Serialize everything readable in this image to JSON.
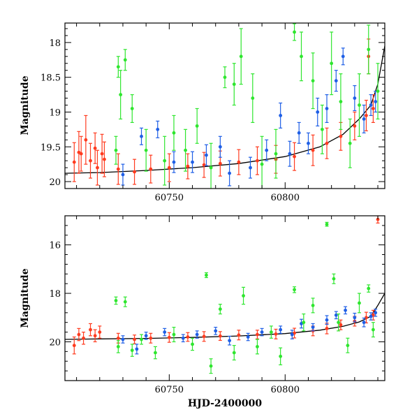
{
  "chart_data": [
    {
      "type": "scatter",
      "panel": "top",
      "title": "",
      "xlabel": "",
      "ylabel": "Magnitude",
      "xlim": [
        60705,
        60843
      ],
      "ylim": [
        20.1,
        17.72
      ],
      "y_inverted": true,
      "xticks": [
        60750,
        60800
      ],
      "xtick_labels": [
        "60750",
        "60800"
      ],
      "yticks": [
        18,
        18.5,
        19,
        19.5,
        20
      ],
      "ytick_labels": [
        "18",
        "18.5",
        "19",
        "19.5",
        "20"
      ],
      "grid": false,
      "legend": "none",
      "series": [
        {
          "color": "#ff3b1f",
          "points": [
            [
              60709,
              19.72,
              0.28
            ],
            [
              60711,
              19.58,
              0.3
            ],
            [
              60712,
              19.6,
              0.25
            ],
            [
              60714,
              19.4,
              0.35
            ],
            [
              60716,
              19.7,
              0.25
            ],
            [
              60718,
              19.52,
              0.22
            ],
            [
              60719,
              19.8,
              0.25
            ],
            [
              60721,
              19.6,
              0.28
            ],
            [
              60722,
              19.68,
              0.25
            ],
            [
              60728,
              19.82,
              0.22
            ],
            [
              60735,
              19.86,
              0.18
            ],
            [
              60742,
              19.82,
              0.2
            ],
            [
              60750,
              19.8,
              0.2
            ],
            [
              60758,
              19.78,
              0.18
            ],
            [
              60765,
              19.76,
              0.18
            ],
            [
              60772,
              19.74,
              0.18
            ],
            [
              60780,
              19.72,
              0.18
            ],
            [
              60788,
              19.7,
              0.2
            ],
            [
              60796,
              19.68,
              0.2
            ],
            [
              60804,
              19.64,
              0.2
            ],
            [
              60812,
              19.55,
              0.22
            ],
            [
              60818,
              19.45,
              0.22
            ],
            [
              60824,
              19.35,
              0.2
            ],
            [
              60830,
              19.2,
              0.2
            ],
            [
              60835,
              19.05,
              0.22
            ],
            [
              60838,
              18.95,
              0.2
            ],
            [
              60836,
              18.2,
              0.25
            ]
          ]
        },
        {
          "color": "#1f5fe6",
          "points": [
            [
              60730,
              19.9,
              0.15
            ],
            [
              60738,
              19.35,
              0.12
            ],
            [
              60745,
              19.25,
              0.12
            ],
            [
              60752,
              19.72,
              0.15
            ],
            [
              60760,
              19.72,
              0.15
            ],
            [
              60766,
              19.62,
              0.15
            ],
            [
              60772,
              19.5,
              0.15
            ],
            [
              60776,
              19.88,
              0.18
            ],
            [
              60785,
              19.8,
              0.15
            ],
            [
              60792,
              19.55,
              0.15
            ],
            [
              60798,
              19.05,
              0.18
            ],
            [
              60802,
              19.6,
              0.18
            ],
            [
              60806,
              19.3,
              0.15
            ],
            [
              60810,
              19.45,
              0.15
            ],
            [
              60814,
              19.0,
              0.2
            ],
            [
              60818,
              18.95,
              0.2
            ],
            [
              60822,
              18.55,
              0.15
            ],
            [
              60825,
              18.2,
              0.12
            ],
            [
              60830,
              18.8,
              0.18
            ],
            [
              60834,
              19.1,
              0.2
            ],
            [
              60837,
              18.9,
              0.15
            ],
            [
              60839,
              18.85,
              0.15
            ]
          ]
        },
        {
          "color": "#2ee62e",
          "points": [
            [
              60727,
              19.55,
              0.2
            ],
            [
              60728,
              18.35,
              0.15
            ],
            [
              60729,
              18.75,
              0.35
            ],
            [
              60731,
              18.25,
              0.15
            ],
            [
              60734,
              18.95,
              0.2
            ],
            [
              60740,
              19.55,
              0.3
            ],
            [
              60748,
              19.7,
              0.35
            ],
            [
              60752,
              19.3,
              0.25
            ],
            [
              60757,
              19.55,
              0.3
            ],
            [
              60762,
              19.2,
              0.25
            ],
            [
              60768,
              19.8,
              0.35
            ],
            [
              60774,
              18.5,
              0.15
            ],
            [
              60778,
              18.6,
              0.3
            ],
            [
              60781,
              18.2,
              0.4
            ],
            [
              60786,
              18.8,
              0.35
            ],
            [
              60790,
              19.75,
              0.4
            ],
            [
              60796,
              19.6,
              0.35
            ],
            [
              60804,
              17.85,
              0.12
            ],
            [
              60807,
              18.2,
              0.35
            ],
            [
              60812,
              18.55,
              0.4
            ],
            [
              60816,
              19.25,
              0.35
            ],
            [
              60820,
              18.3,
              0.45
            ],
            [
              60824,
              18.85,
              0.4
            ],
            [
              60828,
              19.45,
              0.35
            ],
            [
              60832,
              18.9,
              0.45
            ],
            [
              60836,
              18.1,
              0.35
            ],
            [
              60840,
              18.7,
              0.4
            ]
          ]
        }
      ],
      "curve": {
        "color": "#000000",
        "x": [
          60705,
          60720,
          60740,
          60760,
          60780,
          60800,
          60815,
          60825,
          60832,
          60837,
          60840,
          60843
        ],
        "y": [
          19.88,
          19.87,
          19.84,
          19.8,
          19.74,
          19.64,
          19.5,
          19.32,
          19.1,
          18.9,
          18.6,
          18.05
        ]
      }
    },
    {
      "type": "scatter",
      "panel": "bottom",
      "title": "",
      "xlabel": "HJD-2400000",
      "ylabel": "Magnitude",
      "xlim": [
        60705,
        60843
      ],
      "ylim": [
        21.6,
        14.8
      ],
      "y_inverted": true,
      "xticks": [
        60750,
        60800
      ],
      "xtick_labels": [
        "60750",
        "60800"
      ],
      "yticks": [
        16,
        18,
        20
      ],
      "ytick_labels": [
        "16",
        "18",
        "20"
      ],
      "grid": false,
      "legend": "none",
      "series": [
        {
          "color": "#ff3b1f",
          "points": [
            [
              60709,
              20.15,
              0.35
            ],
            [
              60711,
              19.7,
              0.25
            ],
            [
              60713,
              19.85,
              0.25
            ],
            [
              60716,
              19.5,
              0.25
            ],
            [
              60718,
              19.75,
              0.25
            ],
            [
              60720,
              19.6,
              0.25
            ],
            [
              60728,
              19.85,
              0.2
            ],
            [
              60735,
              19.9,
              0.18
            ],
            [
              60742,
              19.85,
              0.2
            ],
            [
              60750,
              19.82,
              0.2
            ],
            [
              60758,
              19.8,
              0.18
            ],
            [
              60765,
              19.78,
              0.2
            ],
            [
              60772,
              19.76,
              0.18
            ],
            [
              60780,
              19.72,
              0.2
            ],
            [
              60788,
              19.7,
              0.18
            ],
            [
              60796,
              19.68,
              0.2
            ],
            [
              60804,
              19.64,
              0.2
            ],
            [
              60812,
              19.55,
              0.2
            ],
            [
              60818,
              19.45,
              0.22
            ],
            [
              60824,
              19.3,
              0.2
            ],
            [
              60830,
              19.15,
              0.2
            ],
            [
              60835,
              19.0,
              0.22
            ],
            [
              60838,
              18.9,
              0.2
            ],
            [
              60840,
              14.95,
              0.15
            ]
          ]
        },
        {
          "color": "#1f5fe6",
          "points": [
            [
              60730,
              19.9,
              0.15
            ],
            [
              60736,
              20.3,
              0.2
            ],
            [
              60740,
              19.75,
              0.15
            ],
            [
              60748,
              19.6,
              0.15
            ],
            [
              60756,
              19.85,
              0.15
            ],
            [
              60762,
              19.7,
              0.15
            ],
            [
              60770,
              19.55,
              0.15
            ],
            [
              60776,
              19.95,
              0.18
            ],
            [
              60784,
              19.8,
              0.15
            ],
            [
              60790,
              19.6,
              0.15
            ],
            [
              60798,
              19.5,
              0.15
            ],
            [
              60803,
              19.7,
              0.18
            ],
            [
              60807,
              19.25,
              0.18
            ],
            [
              60812,
              19.4,
              0.15
            ],
            [
              60818,
              19.1,
              0.18
            ],
            [
              60822,
              18.9,
              0.15
            ],
            [
              60826,
              18.7,
              0.15
            ],
            [
              60830,
              19.0,
              0.18
            ],
            [
              60834,
              19.2,
              0.18
            ],
            [
              60837,
              18.95,
              0.15
            ],
            [
              60839,
              18.8,
              0.15
            ]
          ]
        },
        {
          "color": "#2ee62e",
          "points": [
            [
              60727,
              18.3,
              0.15
            ],
            [
              60728,
              20.2,
              0.25
            ],
            [
              60731,
              18.35,
              0.2
            ],
            [
              60734,
              20.35,
              0.25
            ],
            [
              60738,
              19.9,
              0.2
            ],
            [
              60744,
              20.45,
              0.25
            ],
            [
              60752,
              19.7,
              0.3
            ],
            [
              60760,
              20.1,
              0.25
            ],
            [
              60766,
              17.25,
              0.1
            ],
            [
              60768,
              21.0,
              0.3
            ],
            [
              60772,
              18.65,
              0.2
            ],
            [
              60778,
              20.45,
              0.3
            ],
            [
              60782,
              18.1,
              0.35
            ],
            [
              60788,
              20.2,
              0.3
            ],
            [
              60794,
              19.6,
              0.25
            ],
            [
              60798,
              20.6,
              0.35
            ],
            [
              60804,
              17.85,
              0.12
            ],
            [
              60808,
              19.2,
              0.35
            ],
            [
              60812,
              18.5,
              0.3
            ],
            [
              60818,
              15.15,
              0.08
            ],
            [
              60821,
              17.4,
              0.2
            ],
            [
              60823,
              19.2,
              0.35
            ],
            [
              60827,
              20.15,
              0.3
            ],
            [
              60832,
              18.4,
              0.4
            ],
            [
              60836,
              17.8,
              0.15
            ],
            [
              60838,
              19.5,
              0.3
            ]
          ]
        }
      ],
      "curve": {
        "color": "#000000",
        "x": [
          60705,
          60720,
          60740,
          60760,
          60780,
          60800,
          60815,
          60825,
          60832,
          60837,
          60840,
          60843
        ],
        "y": [
          19.9,
          19.88,
          19.86,
          19.82,
          19.76,
          19.66,
          19.52,
          19.36,
          19.18,
          18.95,
          18.5,
          18.0
        ]
      }
    }
  ]
}
